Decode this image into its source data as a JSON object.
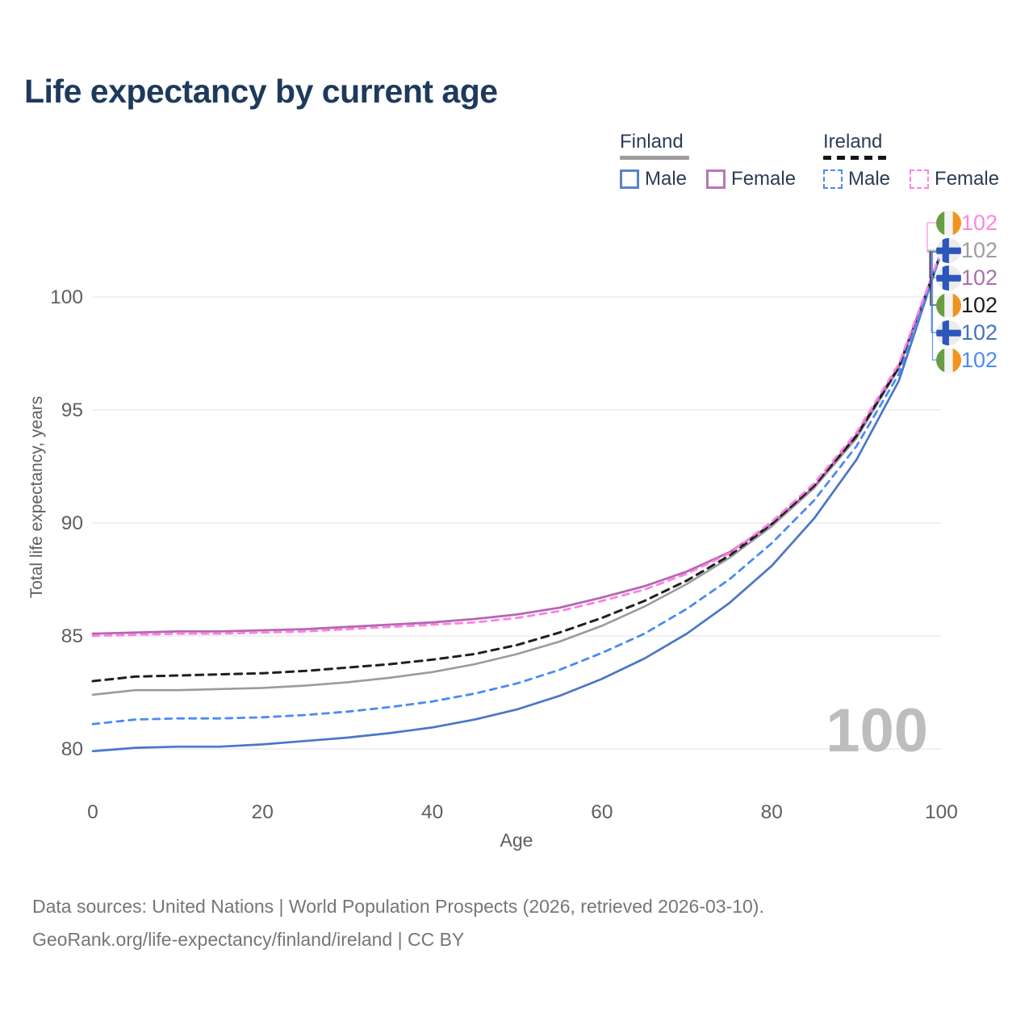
{
  "title": "Life expectancy by current age",
  "legend": {
    "groups": [
      {
        "id": "finland",
        "label": "Finland",
        "line_style": "solid",
        "line_color": "#9e9e9e",
        "items": [
          {
            "id": "finland-male",
            "label": "Male",
            "swatch_color": "#4a76c7",
            "style": "solid"
          },
          {
            "id": "finland-female",
            "label": "Female",
            "swatch_color": "#b468b0",
            "style": "solid"
          }
        ]
      },
      {
        "id": "ireland",
        "label": "Ireland",
        "line_style": "dashed",
        "line_color": "#1f1f1f",
        "items": [
          {
            "id": "ireland-male",
            "label": "Male",
            "swatch_color": "#4b8bf2",
            "style": "dashed"
          },
          {
            "id": "ireland-female",
            "label": "Female",
            "swatch_color": "#ff80e4",
            "style": "dashed"
          }
        ]
      }
    ]
  },
  "chart_data": {
    "type": "line",
    "title": "Life expectancy by current age",
    "xlabel": "Age",
    "ylabel": "Total life expectancy, years",
    "x_ticks": [
      0,
      20,
      40,
      60,
      80,
      100
    ],
    "y_ticks": [
      80,
      85,
      90,
      95,
      100
    ],
    "xlim": [
      0,
      100
    ],
    "ylim": [
      78.5,
      103
    ],
    "grid": "horizontal",
    "legend_position": "top-right",
    "age_counter": "100",
    "ages": [
      0,
      5,
      10,
      15,
      20,
      25,
      30,
      35,
      40,
      45,
      50,
      55,
      60,
      65,
      70,
      75,
      80,
      85,
      90,
      95,
      100
    ],
    "series": [
      {
        "id": "finland-total",
        "name": "Finland (both sexes)",
        "color": "#9b9b9b",
        "dash": "solid",
        "width": 2.6,
        "values": [
          82.4,
          82.6,
          82.6,
          82.65,
          82.7,
          82.8,
          82.95,
          83.15,
          83.4,
          83.75,
          84.2,
          84.75,
          85.45,
          86.3,
          87.3,
          88.45,
          89.85,
          91.55,
          93.75,
          96.85,
          101.95
        ]
      },
      {
        "id": "finland-female",
        "name": "Finland Female",
        "color": "#b468b0",
        "dash": "solid",
        "width": 2.8,
        "values": [
          85.1,
          85.15,
          85.2,
          85.2,
          85.25,
          85.3,
          85.4,
          85.5,
          85.6,
          85.75,
          85.95,
          86.25,
          86.7,
          87.2,
          87.85,
          88.7,
          89.95,
          91.6,
          93.9,
          96.95,
          102
        ]
      },
      {
        "id": "finland-male",
        "name": "Finland Male",
        "color": "#4a76c7",
        "dash": "solid",
        "width": 2.7,
        "values": [
          79.9,
          80.05,
          80.1,
          80.1,
          80.2,
          80.35,
          80.5,
          80.7,
          80.95,
          81.3,
          81.75,
          82.35,
          83.1,
          84.0,
          85.1,
          86.45,
          88.1,
          90.2,
          92.8,
          96.3,
          102
        ]
      },
      {
        "id": "ireland-total",
        "name": "Ireland (both sexes)",
        "color": "#1f1f1f",
        "dash": "9 7",
        "width": 3,
        "values": [
          83.0,
          83.2,
          83.25,
          83.3,
          83.35,
          83.45,
          83.6,
          83.75,
          83.95,
          84.2,
          84.6,
          85.15,
          85.8,
          86.55,
          87.45,
          88.55,
          89.95,
          91.65,
          93.85,
          96.9,
          102
        ]
      },
      {
        "id": "ireland-male",
        "name": "Ireland Male",
        "color": "#4b8bf2",
        "dash": "8 7",
        "width": 2.8,
        "values": [
          81.1,
          81.3,
          81.35,
          81.35,
          81.4,
          81.5,
          81.65,
          81.85,
          82.1,
          82.45,
          82.9,
          83.5,
          84.25,
          85.1,
          86.2,
          87.5,
          89.1,
          91.0,
          93.4,
          96.6,
          101.95
        ]
      },
      {
        "id": "ireland-female",
        "name": "Ireland Female",
        "color": "#ff80e4",
        "dash": "8 7",
        "width": 2.8,
        "values": [
          85.0,
          85.05,
          85.1,
          85.1,
          85.15,
          85.2,
          85.3,
          85.4,
          85.5,
          85.6,
          85.8,
          86.1,
          86.55,
          87.05,
          87.75,
          88.65,
          90.05,
          91.75,
          94.0,
          97.05,
          102.05
        ]
      }
    ]
  },
  "end_labels": [
    {
      "flag": "ireland",
      "value": "102",
      "color": "#ff85e0",
      "series": "ireland-female"
    },
    {
      "flag": "finland",
      "value": "102",
      "color": "#9e9e9e",
      "series": "finland-total"
    },
    {
      "flag": "finland",
      "value": "102",
      "color": "#a96fae",
      "series": "finland-female"
    },
    {
      "flag": "ireland",
      "value": "102",
      "color": "#1a1a1a",
      "series": "ireland-total"
    },
    {
      "flag": "finland",
      "value": "102",
      "color": "#4472c4",
      "series": "finland-male"
    },
    {
      "flag": "ireland",
      "value": "102",
      "color": "#4b8bf2",
      "series": "ireland-male"
    }
  ],
  "footer": {
    "line1": "Data sources: United Nations | World Population Prospects (2026, retrieved 2026-03-10).",
    "line2": "GeoRank.org/life-expectancy/finland/ireland | CC BY"
  }
}
